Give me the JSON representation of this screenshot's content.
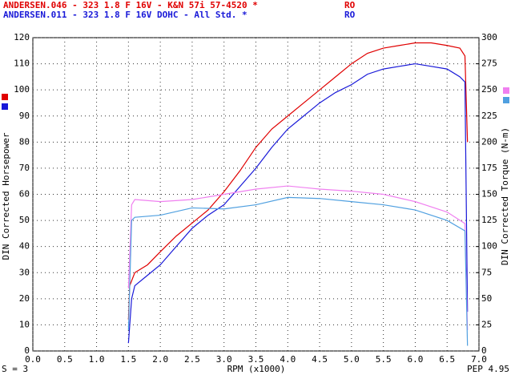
{
  "chart_data": {
    "type": "line",
    "header": [
      {
        "text": "ANDERSEN.046 - 323 1.8 F 16V - K&N 57i 57-4520 *",
        "tag": "RO",
        "color": "#e00000"
      },
      {
        "text": "ANDERSEN.011 - 323 1.8 F 16V DOHC - All Std. *",
        "tag": "RO",
        "color": "#1818d8"
      }
    ],
    "xlabel": "RPM (x1000)",
    "ylabel": "DIN Corrected Horsepower",
    "y2label": "DIN Corrected Torque (N-m)",
    "footer_left": "S = 3",
    "footer_right": "PEP 4.95",
    "grid": true,
    "xlim": [
      0,
      7
    ],
    "ylim": [
      0,
      120
    ],
    "y2lim": [
      0,
      300
    ],
    "xticks": [
      {
        "value": 0,
        "label": "0.0"
      },
      0.5,
      {
        "value": 1,
        "label": "1.0"
      },
      1.5,
      {
        "value": 2,
        "label": "2.0"
      },
      2.5,
      {
        "value": 3,
        "label": "3.0"
      },
      3.5,
      {
        "value": 4,
        "label": "4.0"
      },
      4.5,
      {
        "value": 5,
        "label": "5.0"
      },
      5.5,
      {
        "value": 6,
        "label": "6.0"
      },
      6.5,
      {
        "value": 7,
        "label": "7.0"
      }
    ],
    "yticks": [
      0,
      10,
      20,
      30,
      40,
      50,
      60,
      70,
      80,
      90,
      100,
      110,
      120
    ],
    "y2ticks": [
      0,
      25,
      50,
      75,
      100,
      125,
      150,
      175,
      200,
      225,
      250,
      275,
      300
    ],
    "series": [
      {
        "color": "#e00000",
        "x": [
          1.5,
          1.52,
          1.6,
          1.8,
          2.0,
          2.25,
          2.5,
          2.75,
          3.0,
          3.25,
          3.5,
          3.75,
          4.0,
          4.25,
          4.5,
          4.75,
          5.0,
          5.25,
          5.5,
          5.75,
          6.0,
          6.25,
          6.5,
          6.7,
          6.78,
          6.82
        ],
        "values": [
          12,
          25,
          30,
          33,
          38,
          44,
          49,
          54,
          61,
          69,
          78,
          85,
          90,
          95,
          100,
          105,
          110,
          114,
          116,
          117,
          118,
          118,
          117,
          116,
          113,
          80
        ]
      },
      {
        "color": "#1818d8",
        "x": [
          1.5,
          1.55,
          1.6,
          1.8,
          2.0,
          2.25,
          2.5,
          2.75,
          3.0,
          3.25,
          3.5,
          3.75,
          4.0,
          4.25,
          4.5,
          4.75,
          5.0,
          5.25,
          5.5,
          5.75,
          6.0,
          6.25,
          6.5,
          6.7,
          6.78,
          6.82
        ],
        "values": [
          3,
          20,
          25,
          29,
          33,
          40,
          47,
          52,
          56,
          63,
          70,
          78,
          85,
          90,
          95,
          99,
          102,
          106,
          108,
          109,
          110,
          109,
          108,
          105,
          103,
          15
        ]
      },
      {
        "color": "#f080f0",
        "axis": "y2",
        "x": [
          1.5,
          1.55,
          1.6,
          2.0,
          2.5,
          3.0,
          3.5,
          4.0,
          4.5,
          5.0,
          5.5,
          6.0,
          6.5,
          6.78,
          6.82
        ],
        "values": [
          60,
          140,
          145,
          143,
          145,
          150,
          155,
          158,
          155,
          153,
          150,
          143,
          133,
          122,
          20
        ]
      },
      {
        "color": "#50a0e0",
        "axis": "y2",
        "x": [
          1.5,
          1.55,
          1.6,
          2.0,
          2.5,
          3.0,
          3.5,
          4.0,
          4.5,
          5.0,
          5.5,
          6.0,
          6.5,
          6.78,
          6.82
        ],
        "values": [
          20,
          125,
          128,
          130,
          137,
          136,
          140,
          147,
          146,
          143,
          140,
          135,
          125,
          115,
          5
        ]
      }
    ]
  }
}
